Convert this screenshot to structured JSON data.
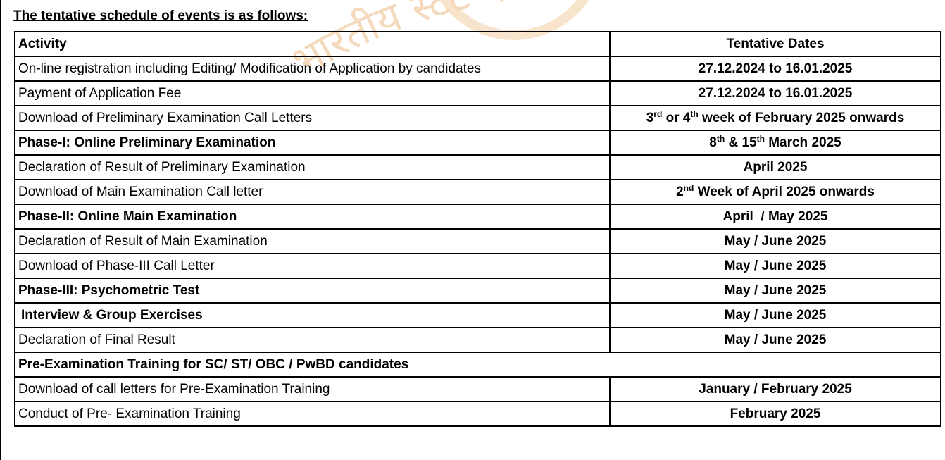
{
  "heading": "The tentative schedule of events is as follows:",
  "watermark_text": "भारतीय स्टेट बैंक",
  "table": {
    "headers": {
      "activity": "Activity",
      "dates": "Tentative Dates"
    },
    "rows": [
      {
        "activity": "On-line registration including Editing/ Modification of Application by candidates",
        "bold": false,
        "dates": [
          {
            "t": "27.12.2024 to 16.01.2025"
          }
        ]
      },
      {
        "activity": "Payment of Application Fee",
        "bold": false,
        "dates": [
          {
            "t": "27.12.2024 to 16.01.2025"
          }
        ]
      },
      {
        "activity": "Download of Preliminary Examination Call Letters",
        "bold": false,
        "dates": [
          {
            "t": "3"
          },
          {
            "t": "rd",
            "sup": true
          },
          {
            "t": " or 4"
          },
          {
            "t": "th",
            "sup": true
          },
          {
            "t": " week of February 2025 onwards"
          }
        ]
      },
      {
        "activity": "Phase-I: Online Preliminary Examination",
        "bold": true,
        "dates": [
          {
            "t": "8"
          },
          {
            "t": "th",
            "sup": true
          },
          {
            "t": " & 15"
          },
          {
            "t": "th",
            "sup": true
          },
          {
            "t": " March 2025"
          }
        ]
      },
      {
        "activity": "Declaration of Result of Preliminary Examination",
        "bold": false,
        "dates": [
          {
            "t": "April 2025"
          }
        ]
      },
      {
        "activity": "Download of Main Examination Call letter",
        "bold": false,
        "dates": [
          {
            "t": "2"
          },
          {
            "t": "nd",
            "sup": true
          },
          {
            "t": " Week of April 2025 onwards"
          }
        ]
      },
      {
        "activity": "Phase-II: Online Main Examination",
        "bold": true,
        "dates": [
          {
            "t": "April  / May 2025"
          }
        ]
      },
      {
        "activity": "Declaration of Result of Main Examination",
        "bold": false,
        "dates": [
          {
            "t": "May / June 2025"
          }
        ]
      },
      {
        "activity": "Download of Phase-III Call Letter",
        "bold": false,
        "dates": [
          {
            "t": "May / June 2025"
          }
        ]
      },
      {
        "activity": "Phase-III: Psychometric Test",
        "bold": true,
        "dates": [
          {
            "t": "May / June 2025"
          }
        ]
      },
      {
        "activity": "Interview & Group Exercises",
        "bold": true,
        "indent": true,
        "dates": [
          {
            "t": "May / June 2025"
          }
        ]
      },
      {
        "activity": "Declaration of Final Result",
        "bold": false,
        "dates": [
          {
            "t": "May / June 2025"
          }
        ]
      },
      {
        "activity": "Pre-Examination Training for SC/ ST/ OBC / PwBD candidates",
        "bold": true,
        "section": true
      },
      {
        "activity": "Download of call letters for Pre-Examination Training",
        "bold": false,
        "dates": [
          {
            "t": "January / February 2025"
          }
        ]
      },
      {
        "activity": "Conduct of Pre- Examination Training",
        "bold": false,
        "dates": [
          {
            "t": "February 2025"
          }
        ]
      }
    ]
  },
  "colors": {
    "watermark": "#f6dcc0",
    "border": "#000000"
  }
}
